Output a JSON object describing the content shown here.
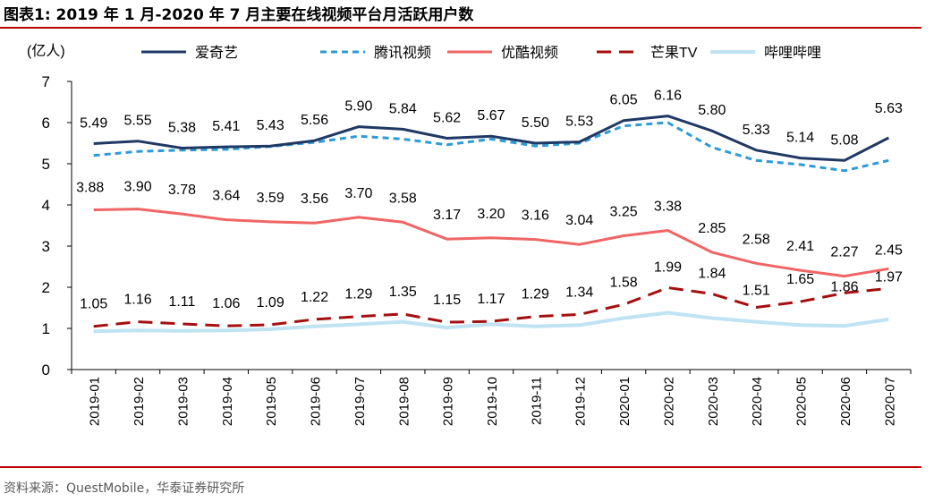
{
  "figure_title": "图表1:   2019 年 1 月-2020 年 7 月主要在线视频平台月活跃用户数",
  "source": "资料来源：QuestMobile，华泰证券研究所",
  "chart_data": {
    "type": "line",
    "unit_label": "(亿人)",
    "categories": [
      "2019-01",
      "2019-02",
      "2019-03",
      "2019-04",
      "2019-05",
      "2019-06",
      "2019-07",
      "2019-08",
      "2019-09",
      "2019-10",
      "2019-11",
      "2019-12",
      "2020-01",
      "2020-02",
      "2020-03",
      "2020-04",
      "2020-05",
      "2020-06",
      "2020-07"
    ],
    "ylim": [
      0,
      7
    ],
    "yticks": [
      0,
      1,
      2,
      3,
      4,
      5,
      6,
      7
    ],
    "grid": false,
    "legend_position": "top",
    "series": [
      {
        "name": "爱奇艺",
        "color": "#1f3864",
        "dash": "solid",
        "labeled": true,
        "values": [
          5.49,
          5.55,
          5.38,
          5.41,
          5.43,
          5.56,
          5.9,
          5.84,
          5.62,
          5.67,
          5.5,
          5.53,
          6.05,
          6.16,
          5.8,
          5.33,
          5.14,
          5.08,
          5.63
        ]
      },
      {
        "name": "腾讯视频",
        "color": "#2e9bd6",
        "dash": "dashed",
        "labeled": false,
        "values": [
          5.2,
          5.3,
          5.33,
          5.35,
          5.42,
          5.52,
          5.67,
          5.6,
          5.46,
          5.6,
          5.43,
          5.5,
          5.92,
          6.0,
          5.4,
          5.08,
          4.98,
          4.83,
          5.08
        ]
      },
      {
        "name": "优酷视频",
        "color": "#f06565",
        "dash": "solid",
        "labeled": true,
        "values": [
          3.88,
          3.9,
          3.78,
          3.64,
          3.59,
          3.56,
          3.7,
          3.58,
          3.17,
          3.2,
          3.16,
          3.04,
          3.25,
          3.38,
          2.85,
          2.58,
          2.41,
          2.27,
          2.45
        ]
      },
      {
        "name": "芒果TV",
        "color": "#a50f0f",
        "dash": "longdash",
        "labeled": true,
        "values": [
          1.05,
          1.16,
          1.11,
          1.06,
          1.09,
          1.22,
          1.29,
          1.35,
          1.15,
          1.17,
          1.29,
          1.34,
          1.58,
          1.99,
          1.84,
          1.51,
          1.65,
          1.86,
          1.97
        ]
      },
      {
        "name": "哔哩哔哩",
        "color": "#bfe3f2",
        "dash": "solid",
        "labeled": false,
        "values": [
          0.93,
          0.95,
          0.94,
          0.95,
          0.98,
          1.05,
          1.1,
          1.16,
          1.02,
          1.1,
          1.05,
          1.08,
          1.25,
          1.38,
          1.25,
          1.16,
          1.08,
          1.06,
          1.22
        ]
      }
    ]
  }
}
